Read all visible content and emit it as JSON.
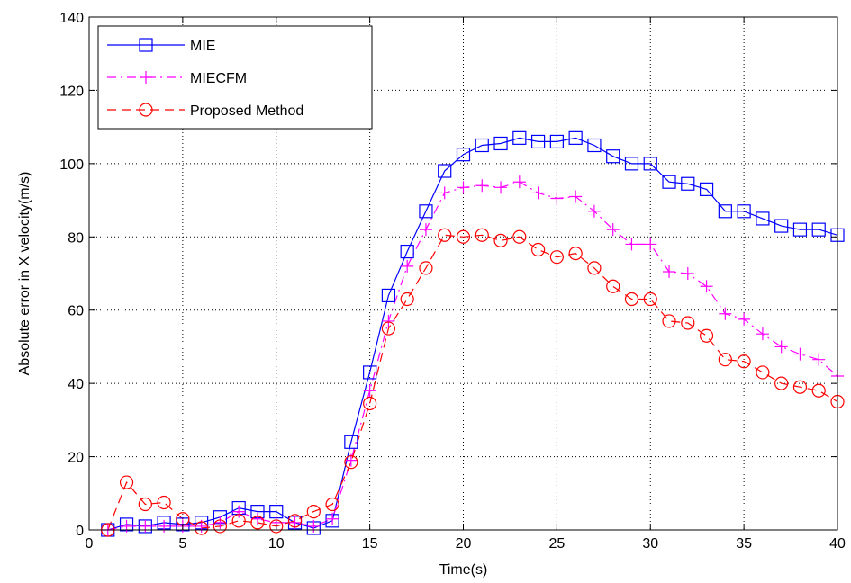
{
  "chart_data": {
    "type": "line",
    "xlabel": "Time(s)",
    "ylabel": "Absolute error in X velocity(m/s)",
    "xlim": [
      0,
      40
    ],
    "ylim": [
      0,
      140
    ],
    "xticks": [
      "0",
      "5",
      "10",
      "15",
      "20",
      "25",
      "30",
      "35",
      "40"
    ],
    "yticks": [
      "0",
      "20",
      "40",
      "60",
      "80",
      "100",
      "120",
      "140"
    ],
    "grid": true,
    "legend_position": "top-left",
    "x": [
      1,
      2,
      3,
      4,
      5,
      6,
      7,
      8,
      9,
      10,
      11,
      12,
      13,
      14,
      15,
      16,
      17,
      18,
      19,
      20,
      21,
      22,
      23,
      24,
      25,
      26,
      27,
      28,
      29,
      30,
      31,
      32,
      33,
      34,
      35,
      36,
      37,
      38,
      39,
      40
    ],
    "series": [
      {
        "name": "MIE",
        "color": "#0000ff",
        "line_style": "solid",
        "marker": "square",
        "values": [
          0,
          1.5,
          1,
          2,
          1.5,
          2,
          3.5,
          6,
          5,
          5,
          2,
          0.5,
          2.5,
          24,
          43,
          64,
          76,
          87,
          98,
          102.5,
          105,
          105.5,
          107,
          106,
          106,
          107,
          105,
          102,
          100,
          100,
          95,
          94.5,
          93,
          87,
          87,
          85,
          83,
          82,
          82,
          80.5
        ]
      },
      {
        "name": "MIECFM",
        "color": "#ff00ff",
        "line_style": "dash-dot",
        "marker": "plus",
        "values": [
          0,
          1,
          1,
          1,
          1,
          1,
          2,
          5,
          3,
          2,
          2,
          1,
          3,
          19,
          38,
          57,
          72,
          82,
          92,
          93.5,
          94,
          93.5,
          95,
          92,
          90.5,
          91,
          87,
          82,
          78,
          78,
          70.5,
          70,
          66.5,
          59,
          57.5,
          53.5,
          50,
          48,
          46.5,
          42
        ]
      },
      {
        "name": "Proposed Method",
        "color": "#ff0000",
        "line_style": "dashed",
        "marker": "circle",
        "values": [
          0,
          13,
          7,
          7.5,
          3,
          0.5,
          1,
          2.5,
          2,
          1,
          2.5,
          5,
          7,
          18.5,
          34.5,
          55,
          63,
          71.5,
          80.5,
          80,
          80.5,
          79,
          80,
          76.5,
          74.5,
          75.5,
          71.5,
          66.5,
          63,
          63,
          57,
          56.5,
          53,
          46.5,
          46,
          43,
          40,
          39,
          38,
          35
        ]
      }
    ]
  }
}
